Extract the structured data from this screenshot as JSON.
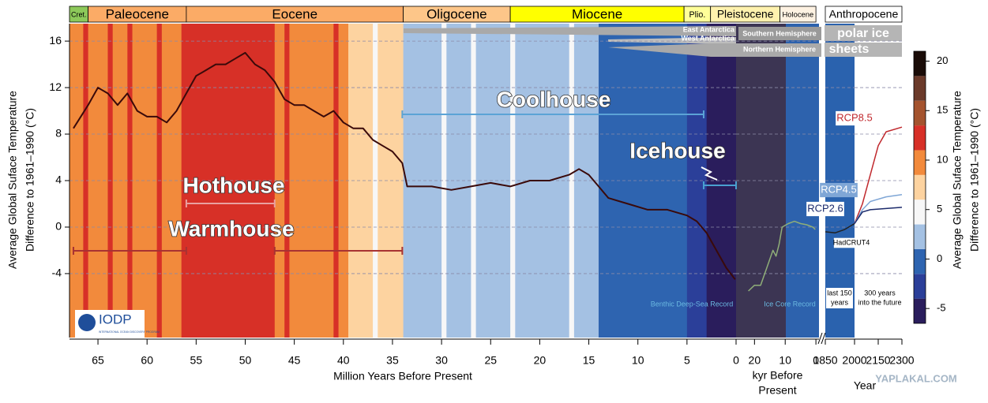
{
  "chart_data": {
    "type": "line",
    "y_label": [
      "Average Global Suface Temperature",
      "Difference to 1961–1990 (°C)"
    ],
    "ylim": [
      -9.5,
      17.5
    ],
    "yticks": [
      -4,
      0,
      4,
      8,
      12,
      16
    ],
    "grid": true,
    "panels": [
      {
        "x_label": "Million Years Before Present",
        "xlim": [
          67.9,
          0
        ],
        "xticks": [
          65,
          60,
          55,
          50,
          45,
          40,
          35,
          30,
          25,
          20,
          15,
          10,
          5,
          0
        ]
      },
      {
        "x_label": [
          "kyr Before",
          "Present"
        ],
        "xlim": [
          26,
          -1
        ],
        "xticks": [
          20,
          10,
          0
        ]
      },
      {
        "caption": [
          "last 150",
          "years"
        ],
        "xlim": [
          1850,
          2000
        ],
        "xticks": [
          1850,
          2000
        ]
      },
      {
        "x_label": "Year",
        "caption": [
          "300 years",
          "into the future"
        ],
        "xlim": [
          2000,
          2300
        ],
        "xticks": [
          2150,
          2300
        ]
      }
    ],
    "epochs": [
      {
        "name": "Cret.",
        "start": 67.9,
        "end": 66,
        "color": "#8dc95a"
      },
      {
        "name": "Paleocene",
        "start": 66,
        "end": 56,
        "color": "#fbab66"
      },
      {
        "name": "Eocene",
        "start": 56,
        "end": 33.9,
        "color": "#fbab66"
      },
      {
        "name": "Oligocene",
        "start": 33.9,
        "end": 23,
        "color": "#fdc689"
      },
      {
        "name": "Miocene",
        "start": 23,
        "end": 5.3,
        "color": "#ffff00"
      },
      {
        "name": "Plio.",
        "start": 5.3,
        "end": 2.6,
        "color": "#ffff99"
      },
      {
        "name": "Pleistocene",
        "start": 2.6,
        "end": 0.0117,
        "color": "#fff2ae"
      },
      {
        "name": "Holocene",
        "start": 0.0117,
        "end": 0,
        "color": "#fef2e2"
      },
      {
        "name": "Anthropocene",
        "color": "#ffffff"
      }
    ],
    "stripes": [
      {
        "from": 67.9,
        "to": 66.5,
        "value": 10
      },
      {
        "from": 66.5,
        "to": 66,
        "value": 12
      },
      {
        "from": 66,
        "to": 64,
        "value": 10
      },
      {
        "from": 64,
        "to": 63.5,
        "value": 12
      },
      {
        "from": 63.5,
        "to": 62,
        "value": 10
      },
      {
        "from": 62,
        "to": 61.5,
        "value": 12
      },
      {
        "from": 61.5,
        "to": 59,
        "value": 10
      },
      {
        "from": 59,
        "to": 58.5,
        "value": 12
      },
      {
        "from": 58.5,
        "to": 56.5,
        "value": 10
      },
      {
        "from": 56.5,
        "to": 47,
        "value": 12
      },
      {
        "from": 47,
        "to": 46,
        "value": 10
      },
      {
        "from": 46,
        "to": 45.5,
        "value": 12
      },
      {
        "from": 45.5,
        "to": 41,
        "value": 10
      },
      {
        "from": 41,
        "to": 40.5,
        "value": 12
      },
      {
        "from": 40.5,
        "to": 39.5,
        "value": 10
      },
      {
        "from": 39.5,
        "to": 37,
        "value": 7
      },
      {
        "from": 37,
        "to": 36.5,
        "value": 5
      },
      {
        "from": 36.5,
        "to": 33.9,
        "value": 7
      },
      {
        "from": 33.9,
        "to": 30,
        "value": 2
      },
      {
        "from": 30,
        "to": 29.5,
        "value": 5
      },
      {
        "from": 29.5,
        "to": 27,
        "value": 2
      },
      {
        "from": 27,
        "to": 26.5,
        "value": 5
      },
      {
        "from": 26.5,
        "to": 23,
        "value": 2
      },
      {
        "from": 23,
        "to": 22.5,
        "value": 5
      },
      {
        "from": 22.5,
        "to": 17,
        "value": 2
      },
      {
        "from": 17,
        "to": 16.5,
        "value": 5
      },
      {
        "from": 16.5,
        "to": 14,
        "value": 2
      },
      {
        "from": 14,
        "to": 5,
        "value": 0
      },
      {
        "from": 5,
        "to": 3,
        "value": -3
      },
      {
        "from": 3,
        "to": 0,
        "value": -5
      }
    ],
    "series": [
      {
        "name": "Benthic Deep-Sea Record",
        "color": "#3a0a0a",
        "panel": 0,
        "x": [
          67.5,
          66,
          65,
          64,
          63,
          62,
          61,
          60,
          59,
          58,
          57,
          56,
          55,
          54,
          53,
          52,
          51,
          50,
          49,
          48,
          47,
          46,
          45,
          44,
          43,
          42,
          41,
          40,
          39,
          38,
          37,
          36,
          35,
          34,
          33.5,
          33,
          31,
          29,
          27,
          25,
          23,
          21,
          19,
          17,
          16,
          15,
          14,
          13,
          11,
          9,
          7,
          5,
          4,
          3,
          2,
          1,
          0.1
        ],
        "values": [
          8.5,
          10.5,
          12,
          11.5,
          10.5,
          11.5,
          10,
          9.5,
          9.5,
          9,
          10,
          11.5,
          13,
          13.5,
          14,
          14,
          14.5,
          15,
          14,
          13.5,
          12.5,
          11,
          10.5,
          10.5,
          10,
          9.5,
          10,
          9,
          8.5,
          8.5,
          7.5,
          7,
          6.5,
          5.5,
          3.5,
          3.5,
          3.5,
          3.2,
          3.5,
          3.8,
          3.5,
          4,
          4,
          4.5,
          5,
          4.5,
          3.5,
          2.5,
          2,
          1.5,
          1.5,
          1,
          0.5,
          -0.5,
          -2,
          -3.5,
          -4.5
        ]
      },
      {
        "name": "Ice Core Record",
        "color": "#8fae78",
        "panel": 1,
        "x": [
          22,
          20,
          18,
          16,
          14,
          13,
          12,
          11,
          9,
          7,
          5,
          3,
          1,
          0.2
        ],
        "values": [
          -5.5,
          -5,
          -5,
          -3.5,
          -2,
          -2.5,
          -1.5,
          0,
          0.3,
          0.5,
          0.3,
          0.2,
          0,
          -0.2
        ]
      },
      {
        "name": "HadCRUT4",
        "color": "#222222",
        "panel": 2,
        "x": [
          1850,
          1900,
          1950,
          2000
        ],
        "values": [
          -0.4,
          -0.5,
          -0.2,
          0.3
        ]
      },
      {
        "name": "RCP8.5",
        "color": "#c0282d",
        "panel": 3,
        "x": [
          2000,
          2050,
          2100,
          2150,
          2200,
          2300
        ],
        "values": [
          0.3,
          2,
          4.5,
          7,
          8.2,
          8.6
        ]
      },
      {
        "name": "RCP4.5",
        "color": "#7fa6d6",
        "panel": 3,
        "x": [
          2000,
          2050,
          2100,
          2200,
          2300
        ],
        "values": [
          0.3,
          1.5,
          2.2,
          2.6,
          2.8
        ]
      },
      {
        "name": "RCP2.6",
        "color": "#1b2a6b",
        "panel": 3,
        "x": [
          2000,
          2050,
          2100,
          2200,
          2300
        ],
        "values": [
          0.3,
          1.3,
          1.5,
          1.6,
          1.7
        ]
      }
    ],
    "annotations": [
      {
        "text": "Hothouse",
        "ranges": [
          [
            56,
            47
          ]
        ],
        "color": "#e9a0a0"
      },
      {
        "text": "Warmhouse",
        "ranges": [
          [
            67.5,
            56
          ],
          [
            47,
            34
          ]
        ],
        "color": "#a83232"
      },
      {
        "text": "Coolhouse",
        "ranges": [
          [
            34,
            3.3
          ]
        ],
        "color": "#5ba3d6"
      },
      {
        "text": "Icehouse",
        "ranges": [
          [
            3.3,
            0
          ]
        ],
        "color": "#4aa0d0"
      }
    ],
    "ice_sheets": [
      "East Antarctica",
      "West Antarctica",
      "Southern Hemisphere",
      "Northern Hemisphere",
      "polar ice",
      "sheets"
    ],
    "colorbar": {
      "label": [
        "Average Global Suface Temperature",
        "Difference to 1961–1990 (°C)"
      ],
      "boundaries": [
        -6.5,
        -4,
        -1.5,
        1,
        3.5,
        6,
        8.5,
        11,
        13.5,
        16,
        18.5,
        21
      ],
      "colors": [
        "#2a1d5c",
        "#2b3f99",
        "#2e64b0",
        "#a4c1e3",
        "#f7f7f7",
        "#fdd3a0",
        "#f28a3c",
        "#d73027",
        "#a4532e",
        "#6b3a2a",
        "#1a0c08"
      ],
      "ticks": [
        -5,
        0,
        5,
        10,
        15,
        20
      ]
    },
    "logo": {
      "name": "IODP",
      "subtitle": "INTERNATIONAL OCEAN DISCOVERY PROGRAM"
    },
    "watermark": "YAPLAKAL.COM"
  }
}
